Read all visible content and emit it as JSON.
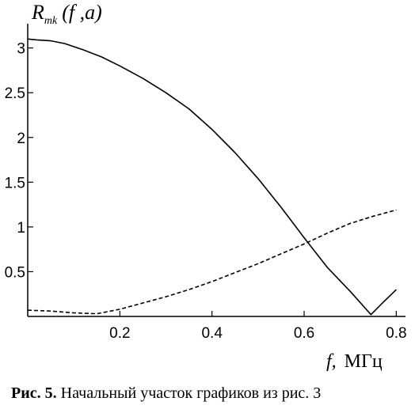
{
  "chart_data": {
    "type": "line",
    "ylabel": {
      "main": "R",
      "sub": "mk",
      "args": "(f ,a)"
    },
    "xlabel": {
      "var": "f,",
      "unit": "МГц"
    },
    "xlim": [
      0,
      0.82
    ],
    "ylim": [
      0,
      3.2
    ],
    "x_ticks": [
      0.2,
      0.4,
      0.6,
      0.8
    ],
    "x_tick_labels": [
      "0.2",
      "0.4",
      "0.6",
      "0.8"
    ],
    "y_ticks": [
      0.5,
      1,
      1.5,
      2,
      2.5,
      3
    ],
    "y_tick_labels": [
      "0.5",
      "1",
      "1.5",
      "2",
      "2.5",
      "3"
    ],
    "grid": false,
    "series": [
      {
        "style": "solid",
        "x": [
          0,
          0.02,
          0.05,
          0.08,
          0.12,
          0.16,
          0.2,
          0.25,
          0.3,
          0.35,
          0.4,
          0.45,
          0.5,
          0.55,
          0.6,
          0.65,
          0.7,
          0.745,
          0.77,
          0.8
        ],
        "y": [
          3.1,
          3.09,
          3.08,
          3.05,
          2.98,
          2.9,
          2.8,
          2.66,
          2.5,
          2.32,
          2.09,
          1.83,
          1.54,
          1.22,
          0.88,
          0.55,
          0.28,
          0.02,
          0.15,
          0.3
        ]
      },
      {
        "style": "dashed",
        "x": [
          0,
          0.05,
          0.1,
          0.15,
          0.2,
          0.25,
          0.3,
          0.35,
          0.4,
          0.45,
          0.5,
          0.55,
          0.6,
          0.65,
          0.7,
          0.75,
          0.8
        ],
        "y": [
          0.07,
          0.06,
          0.04,
          0.03,
          0.08,
          0.15,
          0.22,
          0.3,
          0.39,
          0.49,
          0.59,
          0.7,
          0.81,
          0.93,
          1.04,
          1.12,
          1.19
        ]
      }
    ]
  },
  "caption": {
    "label": "Рис. 5.",
    "text": " Начальный участок графиков из рис. 3"
  }
}
